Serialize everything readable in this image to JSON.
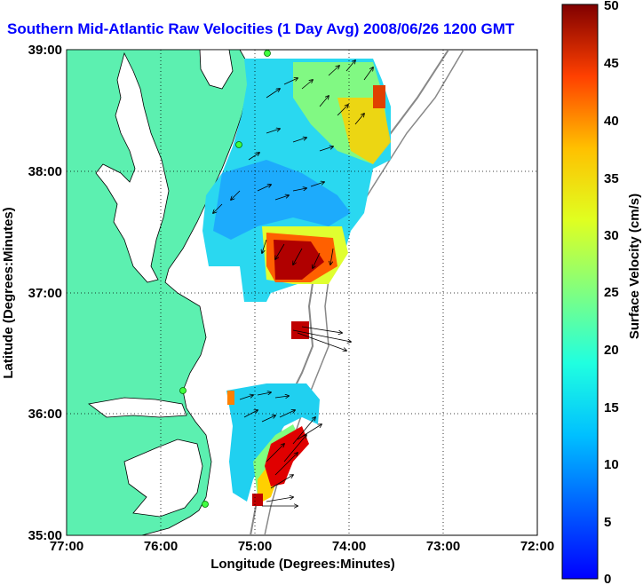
{
  "title": "Southern Mid-Atlantic Raw Velocities (1 Day Avg) 2008/06/26 1200 GMT",
  "x_axis": {
    "label": "Longitude (Degrees:Minutes)",
    "ticks": [
      "77:00",
      "76:00",
      "75:00",
      "74:00",
      "73:00",
      "72:00"
    ]
  },
  "y_axis": {
    "label": "Latitude (Degrees:Minutes)",
    "ticks": [
      "39:00",
      "38:00",
      "37:00",
      "36:00",
      "35:00"
    ]
  },
  "colorbar": {
    "label": "Surface Velocity (cm/s)",
    "ticks": [
      "50",
      "45",
      "40",
      "35",
      "30",
      "25",
      "20",
      "15",
      "10",
      "5",
      "0"
    ],
    "min": 0,
    "max": 50,
    "colormap": "jet"
  },
  "map": {
    "lon_range": [
      -77,
      -72
    ],
    "lat_range": [
      35,
      39
    ],
    "grid": true,
    "land_color": "#5cf0b0",
    "stations": [
      {
        "lon": -74.9,
        "lat": 39.0
      },
      {
        "lon": -75.15,
        "lat": 38.2
      },
      {
        "lon": -75.72,
        "lat": 36.15
      },
      {
        "lon": -75.5,
        "lat": 35.27
      }
    ]
  }
}
